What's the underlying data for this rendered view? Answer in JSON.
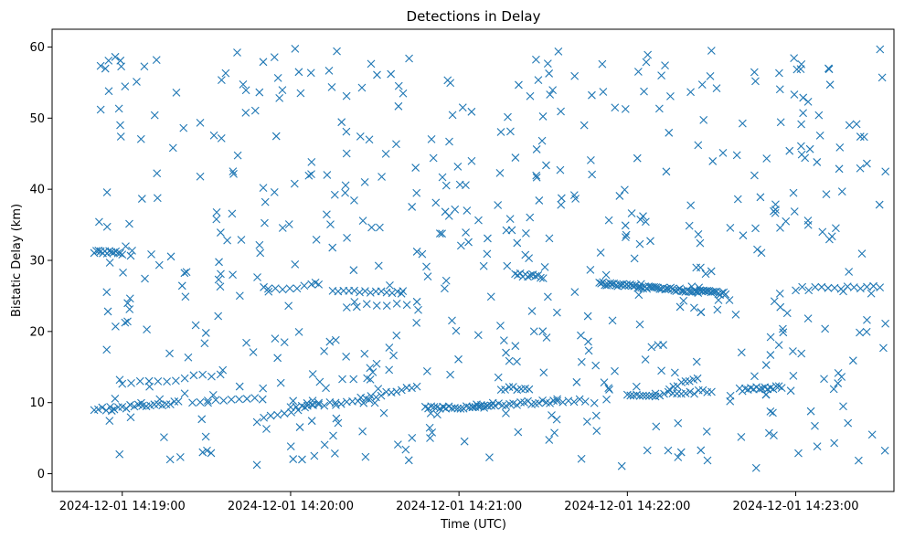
{
  "chart_data": {
    "type": "scatter",
    "title": "Detections in Delay",
    "xlabel": "Time (UTC)",
    "ylabel": "Bistatic Delay (km)",
    "x_type": "time",
    "xlim": [
      "2024-12-01 14:18:35",
      "2024-12-01 14:23:35"
    ],
    "ylim": [
      -2.5,
      62.5
    ],
    "x_ticks": [
      "2024-12-01 14:19:00",
      "2024-12-01 14:20:00",
      "2024-12-01 14:21:00",
      "2024-12-01 14:22:00",
      "2024-12-01 14:23:00"
    ],
    "y_ticks": [
      0,
      10,
      20,
      30,
      40,
      50,
      60
    ],
    "grid": false,
    "legend": "none",
    "marker": "x",
    "color": "#1f77b4",
    "tracks": [
      {
        "start": [
          "2024-12-01 14:18:50",
          31.2
        ],
        "end": [
          "2024-12-01 14:19:00",
          31.0
        ],
        "count": 14
      },
      {
        "start": [
          "2024-12-01 14:18:50",
          9.0
        ],
        "end": [
          "2024-12-01 14:19:20",
          10.0
        ],
        "count": 22
      },
      {
        "start": [
          "2024-12-01 14:19:00",
          12.5
        ],
        "end": [
          "2024-12-01 14:19:35",
          14.0
        ],
        "count": 12
      },
      {
        "start": [
          "2024-12-01 14:19:25",
          10.0
        ],
        "end": [
          "2024-12-01 14:19:50",
          10.5
        ],
        "count": 10
      },
      {
        "start": [
          "2024-12-01 14:19:48",
          7.5
        ],
        "end": [
          "2024-12-01 14:20:10",
          9.8
        ],
        "count": 10
      },
      {
        "start": [
          "2024-12-01 14:19:52",
          26.0
        ],
        "end": [
          "2024-12-01 14:20:10",
          26.5
        ],
        "count": 8
      },
      {
        "start": [
          "2024-12-01 14:20:00",
          9.5
        ],
        "end": [
          "2024-12-01 14:20:30",
          10.2
        ],
        "count": 16
      },
      {
        "start": [
          "2024-12-01 14:20:15",
          25.8
        ],
        "end": [
          "2024-12-01 14:20:40",
          25.5
        ],
        "count": 14
      },
      {
        "start": [
          "2024-12-01 14:20:20",
          23.6
        ],
        "end": [
          "2024-12-01 14:20:45",
          24.0
        ],
        "count": 8
      },
      {
        "start": [
          "2024-12-01 14:20:25",
          10.5
        ],
        "end": [
          "2024-12-01 14:20:45",
          12.2
        ],
        "count": 12
      },
      {
        "start": [
          "2024-12-01 14:20:48",
          9.2
        ],
        "end": [
          "2024-12-01 14:21:10",
          9.5
        ],
        "count": 22
      },
      {
        "start": [
          "2024-12-01 14:21:05",
          9.5
        ],
        "end": [
          "2024-12-01 14:21:35",
          10.2
        ],
        "count": 24
      },
      {
        "start": [
          "2024-12-01 14:21:15",
          12.0
        ],
        "end": [
          "2024-12-01 14:21:25",
          12.0
        ],
        "count": 8
      },
      {
        "start": [
          "2024-12-01 14:21:20",
          28.0
        ],
        "end": [
          "2024-12-01 14:21:30",
          27.6
        ],
        "count": 12
      },
      {
        "start": [
          "2024-12-01 14:21:35",
          10.3
        ],
        "end": [
          "2024-12-01 14:21:45",
          10.3
        ],
        "count": 6
      },
      {
        "start": [
          "2024-12-01 14:21:50",
          26.8
        ],
        "end": [
          "2024-12-01 14:22:35",
          25.3
        ],
        "count": 70
      },
      {
        "start": [
          "2024-12-01 14:22:00",
          11.0
        ],
        "end": [
          "2024-12-01 14:22:10",
          11.0
        ],
        "count": 10
      },
      {
        "start": [
          "2024-12-01 14:22:10",
          11.2
        ],
        "end": [
          "2024-12-01 14:22:30",
          11.6
        ],
        "count": 14
      },
      {
        "start": [
          "2024-12-01 14:22:15",
          12.0
        ],
        "end": [
          "2024-12-01 14:22:25",
          13.5
        ],
        "count": 8
      },
      {
        "start": [
          "2024-12-01 14:22:40",
          11.8
        ],
        "end": [
          "2024-12-01 14:22:55",
          12.2
        ],
        "count": 16
      },
      {
        "start": [
          "2024-12-01 14:23:00",
          26.0
        ],
        "end": [
          "2024-12-01 14:23:30",
          26.2
        ],
        "count": 14
      }
    ],
    "clutter": {
      "count": 560,
      "x_range": [
        "2024-12-01 14:18:49",
        "2024-12-01 14:23:32"
      ],
      "y_range": [
        0.8,
        59.8
      ]
    }
  }
}
